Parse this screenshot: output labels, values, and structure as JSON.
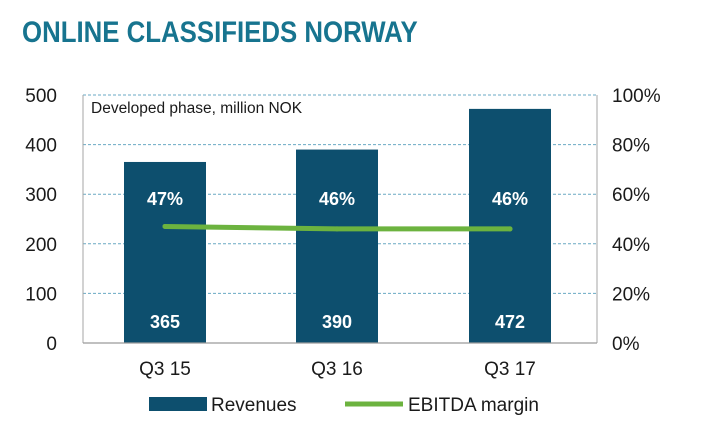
{
  "page_title": "ONLINE CLASSIFIEDS NORWAY",
  "chart_data": {
    "type": "bar",
    "subtitle": "Developed phase, million NOK",
    "categories": [
      "Q3 15",
      "Q3 16",
      "Q3 17"
    ],
    "series": [
      {
        "name": "Revenues",
        "type": "bar",
        "axis": "left",
        "values": [
          365,
          390,
          472
        ],
        "labels": [
          "365",
          "390",
          "472"
        ],
        "color": "#0d4f6e"
      },
      {
        "name": "EBITDA margin",
        "type": "line",
        "axis": "right",
        "values": [
          47,
          46,
          46
        ],
        "labels": [
          "47%",
          "46%",
          "46%"
        ],
        "color": "#6cb33f"
      }
    ],
    "y_left": {
      "ylim": [
        0,
        500
      ],
      "ticks": [
        "0",
        "100",
        "200",
        "300",
        "400",
        "500"
      ]
    },
    "y_right": {
      "ylim": [
        0,
        100
      ],
      "ticks": [
        "0%",
        "20%",
        "40%",
        "60%",
        "80%",
        "100%"
      ]
    },
    "grid": true,
    "legend_position": "bottom",
    "colors": {
      "title": "#17748f",
      "grid": "#6aa9c4"
    }
  }
}
